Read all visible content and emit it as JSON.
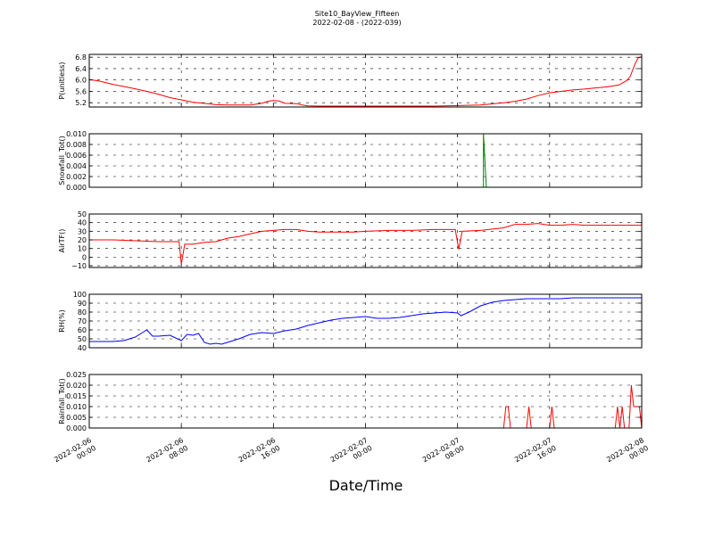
{
  "figure": {
    "title": "Site10_BayView_Fifteen",
    "subtitle": "2022-02-08 - (2022-039)",
    "xlabel": "Date/Time"
  },
  "chart_data": {
    "type": "line",
    "x_ticks": [
      {
        "t": 0,
        "label": [
          "2022-02-06",
          "00:00"
        ]
      },
      {
        "t": 8,
        "label": [
          "2022-02-06",
          "08:00"
        ]
      },
      {
        "t": 16,
        "label": [
          "2022-02-06",
          "16:00"
        ]
      },
      {
        "t": 24,
        "label": [
          "2022-02-07",
          "00:00"
        ]
      },
      {
        "t": 32,
        "label": [
          "2022-02-07",
          "08:00"
        ]
      },
      {
        "t": 40,
        "label": [
          "2022-02-07",
          "16:00"
        ]
      },
      {
        "t": 48,
        "label": [
          "2022-02-08",
          "00:00"
        ]
      }
    ],
    "xlim": [
      0,
      48
    ],
    "grid": true,
    "panels": [
      {
        "ylabel": "P(unitless)",
        "color": "#ff0000",
        "ylim": [
          5.05,
          6.9
        ],
        "yticks": [
          5.2,
          5.6,
          6.0,
          6.4,
          6.8
        ],
        "ytick_labels": [
          "5.2",
          "5.6",
          "6.0",
          "6.4",
          "6.8"
        ],
        "points": [
          [
            0,
            6.02
          ],
          [
            1,
            5.95
          ],
          [
            2,
            5.85
          ],
          [
            3,
            5.77
          ],
          [
            4,
            5.69
          ],
          [
            5,
            5.6
          ],
          [
            6,
            5.5
          ],
          [
            7,
            5.38
          ],
          [
            8,
            5.3
          ],
          [
            9,
            5.22
          ],
          [
            10,
            5.18
          ],
          [
            11,
            5.13
          ],
          [
            12,
            5.12
          ],
          [
            13,
            5.12
          ],
          [
            14,
            5.12
          ],
          [
            15,
            5.18
          ],
          [
            15.5,
            5.25
          ],
          [
            16,
            5.28
          ],
          [
            16.5,
            5.26
          ],
          [
            17,
            5.18
          ],
          [
            18,
            5.17
          ],
          [
            18.5,
            5.12
          ],
          [
            19,
            5.09
          ],
          [
            20,
            5.08
          ],
          [
            22,
            5.08
          ],
          [
            24,
            5.08
          ],
          [
            26,
            5.08
          ],
          [
            28,
            5.08
          ],
          [
            30,
            5.08
          ],
          [
            32,
            5.1
          ],
          [
            34,
            5.12
          ],
          [
            36,
            5.2
          ],
          [
            37,
            5.25
          ],
          [
            38,
            5.33
          ],
          [
            39,
            5.45
          ],
          [
            40,
            5.55
          ],
          [
            41,
            5.6
          ],
          [
            42,
            5.65
          ],
          [
            43,
            5.68
          ],
          [
            44,
            5.72
          ],
          [
            45,
            5.76
          ],
          [
            46,
            5.82
          ],
          [
            46.7,
            5.98
          ],
          [
            47,
            6.12
          ],
          [
            47.4,
            6.55
          ],
          [
            47.7,
            6.78
          ],
          [
            48,
            6.82
          ]
        ]
      },
      {
        "ylabel": "Snowfall_Tot()",
        "color": "#007f00",
        "ylim": [
          0,
          0.01
        ],
        "yticks": [
          0,
          0.002,
          0.004,
          0.006,
          0.008,
          0.01
        ],
        "ytick_labels": [
          "0.000",
          "0.002",
          "0.004",
          "0.006",
          "0.008",
          "0.010"
        ],
        "points": [
          [
            0,
            0
          ],
          [
            34,
            0
          ],
          [
            34.25,
            0
          ],
          [
            34.25,
            0.01
          ],
          [
            34.5,
            0
          ],
          [
            48,
            0
          ]
        ]
      },
      {
        "ylabel": "AirTF()",
        "color": "#ff0000",
        "ylim": [
          -12,
          50
        ],
        "yticks": [
          -10,
          0,
          10,
          20,
          30,
          40,
          50
        ],
        "ytick_labels": [
          "−10",
          "0",
          "10",
          "20",
          "30",
          "40",
          "50"
        ],
        "points": [
          [
            0,
            20
          ],
          [
            2,
            20
          ],
          [
            4,
            19
          ],
          [
            6,
            18
          ],
          [
            7.8,
            18
          ],
          [
            8,
            -8
          ],
          [
            8.3,
            15
          ],
          [
            9,
            15
          ],
          [
            10,
            17
          ],
          [
            11,
            18
          ],
          [
            12,
            22
          ],
          [
            13,
            24
          ],
          [
            14,
            27
          ],
          [
            15,
            30
          ],
          [
            16,
            31
          ],
          [
            17,
            32
          ],
          [
            18,
            32
          ],
          [
            19,
            30
          ],
          [
            20,
            29
          ],
          [
            22,
            29
          ],
          [
            23,
            29
          ],
          [
            24,
            30
          ],
          [
            26,
            31
          ],
          [
            28,
            31
          ],
          [
            30,
            32
          ],
          [
            31.8,
            32
          ],
          [
            32.1,
            9
          ],
          [
            32.4,
            30
          ],
          [
            34,
            31
          ],
          [
            36,
            34
          ],
          [
            37,
            38
          ],
          [
            38,
            38
          ],
          [
            39,
            39
          ],
          [
            40,
            37
          ],
          [
            41,
            37
          ],
          [
            42,
            38
          ],
          [
            43,
            37
          ],
          [
            44,
            37
          ],
          [
            46,
            37
          ],
          [
            48,
            37
          ]
        ]
      },
      {
        "ylabel": "RH(%)",
        "color": "#0000ff",
        "ylim": [
          40,
          100
        ],
        "yticks": [
          40,
          50,
          60,
          70,
          80,
          90,
          100
        ],
        "ytick_labels": [
          "40",
          "50",
          "60",
          "70",
          "80",
          "90",
          "100"
        ],
        "points": [
          [
            0,
            47
          ],
          [
            1,
            47
          ],
          [
            2,
            47
          ],
          [
            3,
            48
          ],
          [
            4,
            52
          ],
          [
            4.5,
            56
          ],
          [
            5,
            60
          ],
          [
            5.5,
            53
          ],
          [
            6,
            53
          ],
          [
            7,
            54
          ],
          [
            8,
            48
          ],
          [
            8.5,
            55
          ],
          [
            9,
            54
          ],
          [
            9.5,
            56
          ],
          [
            10,
            46
          ],
          [
            10.5,
            44
          ],
          [
            11,
            45
          ],
          [
            11.5,
            44
          ],
          [
            12,
            46
          ],
          [
            13,
            50
          ],
          [
            14,
            55
          ],
          [
            15,
            57
          ],
          [
            16,
            56
          ],
          [
            17,
            59
          ],
          [
            18,
            61
          ],
          [
            19,
            65
          ],
          [
            20,
            68
          ],
          [
            21,
            71
          ],
          [
            22,
            73
          ],
          [
            23,
            74
          ],
          [
            24,
            75
          ],
          [
            25,
            73
          ],
          [
            26,
            73
          ],
          [
            27,
            74
          ],
          [
            28,
            76
          ],
          [
            29,
            78
          ],
          [
            30,
            79
          ],
          [
            31,
            80
          ],
          [
            32,
            79
          ],
          [
            32.3,
            76
          ],
          [
            33,
            80
          ],
          [
            34,
            87
          ],
          [
            35,
            91
          ],
          [
            36,
            93
          ],
          [
            37,
            94
          ],
          [
            38,
            95
          ],
          [
            39,
            95
          ],
          [
            40,
            95
          ],
          [
            41,
            95
          ],
          [
            42,
            96
          ],
          [
            44,
            96
          ],
          [
            46,
            96
          ],
          [
            48,
            96
          ]
        ]
      },
      {
        "ylabel": "Rainfall_Tot()",
        "color": "#ff0000",
        "ylim": [
          0,
          0.025
        ],
        "yticks": [
          0,
          0.005,
          0.01,
          0.015,
          0.02,
          0.025
        ],
        "ytick_labels": [
          "0.000",
          "0.005",
          "0.010",
          "0.015",
          "0.020",
          "0.025"
        ],
        "points": [
          [
            0,
            0
          ],
          [
            36,
            0
          ],
          [
            36.2,
            0.01
          ],
          [
            36.4,
            0.01
          ],
          [
            36.6,
            0
          ],
          [
            38,
            0
          ],
          [
            38.2,
            0.01
          ],
          [
            38.4,
            0
          ],
          [
            40,
            0
          ],
          [
            40.2,
            0.01
          ],
          [
            40.4,
            0
          ],
          [
            45.7,
            0
          ],
          [
            45.9,
            0.01
          ],
          [
            46.1,
            0
          ],
          [
            46.3,
            0.01
          ],
          [
            46.5,
            0
          ],
          [
            46.9,
            0
          ],
          [
            47.1,
            0.02
          ],
          [
            47.3,
            0.01
          ],
          [
            47.8,
            0.01
          ],
          [
            48,
            0
          ]
        ]
      }
    ]
  }
}
